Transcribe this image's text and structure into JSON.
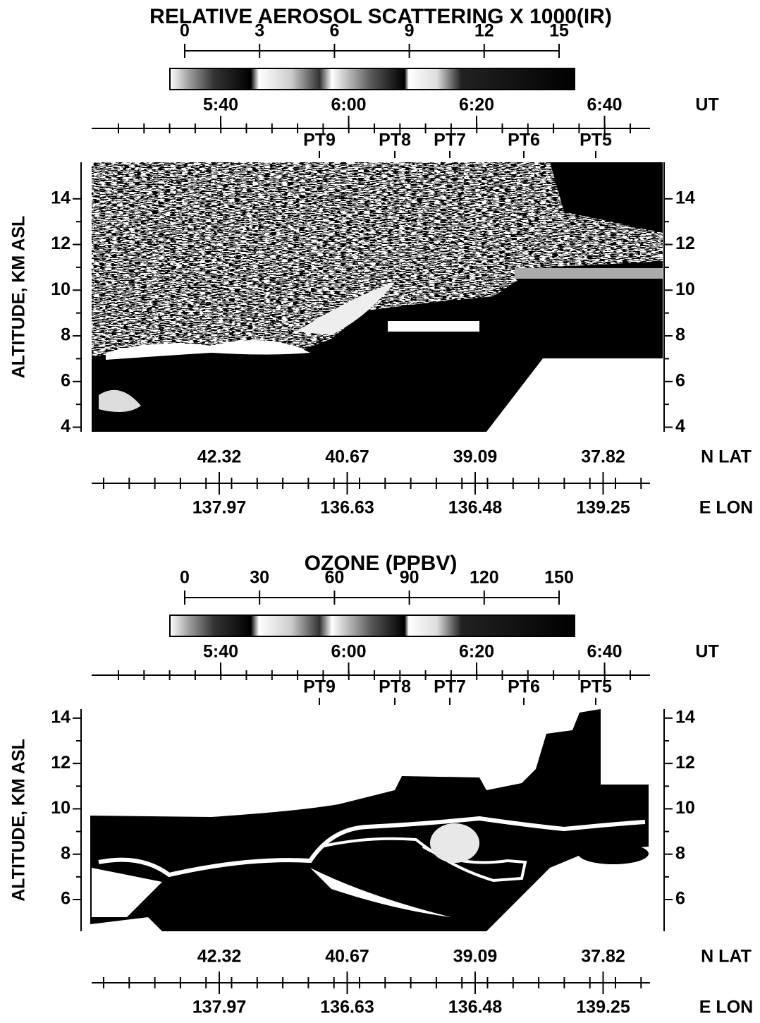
{
  "chart_data": [
    {
      "type": "curtain",
      "title": "RELATIVE AEROSOL SCATTERING X 1000(IR)",
      "colorbar_lim": [
        0,
        15
      ],
      "colorbar_ticks": [
        0,
        3,
        6,
        9,
        12,
        15
      ],
      "time_axis_label": "UT",
      "times": [
        "5:40",
        "6:00",
        "6:20",
        "6:40"
      ],
      "points": [
        "PT9",
        "PT8",
        "PT7",
        "PT6",
        "PT5"
      ],
      "y_label": "ALTITUDE, KM ASL",
      "ylim": [
        3.8,
        15.6
      ],
      "yticks": [
        4,
        6,
        8,
        10,
        12,
        14
      ],
      "lat_label": "N LAT",
      "lat": [
        42.32,
        40.67,
        39.09,
        37.82
      ],
      "lon_label": "E LON",
      "lon": [
        137.97,
        136.63,
        136.48,
        139.25
      ]
    },
    {
      "type": "curtain",
      "title": "OZONE (PPBV)",
      "colorbar_lim": [
        0,
        150
      ],
      "colorbar_ticks": [
        0,
        30,
        60,
        90,
        120,
        150
      ],
      "time_axis_label": "UT",
      "times": [
        "5:40",
        "6:00",
        "6:20",
        "6:40"
      ],
      "points": [
        "PT9",
        "PT8",
        "PT7",
        "PT6",
        "PT5"
      ],
      "y_label": "ALTITUDE, KM ASL",
      "ylim": [
        4.6,
        14.4
      ],
      "yticks": [
        6,
        8,
        10,
        12,
        14
      ],
      "lat_label": "N LAT",
      "lat": [
        42.32,
        40.67,
        39.09,
        37.82
      ],
      "lon_label": "E LON",
      "lon": [
        137.97,
        136.63,
        136.48,
        139.25
      ]
    }
  ]
}
